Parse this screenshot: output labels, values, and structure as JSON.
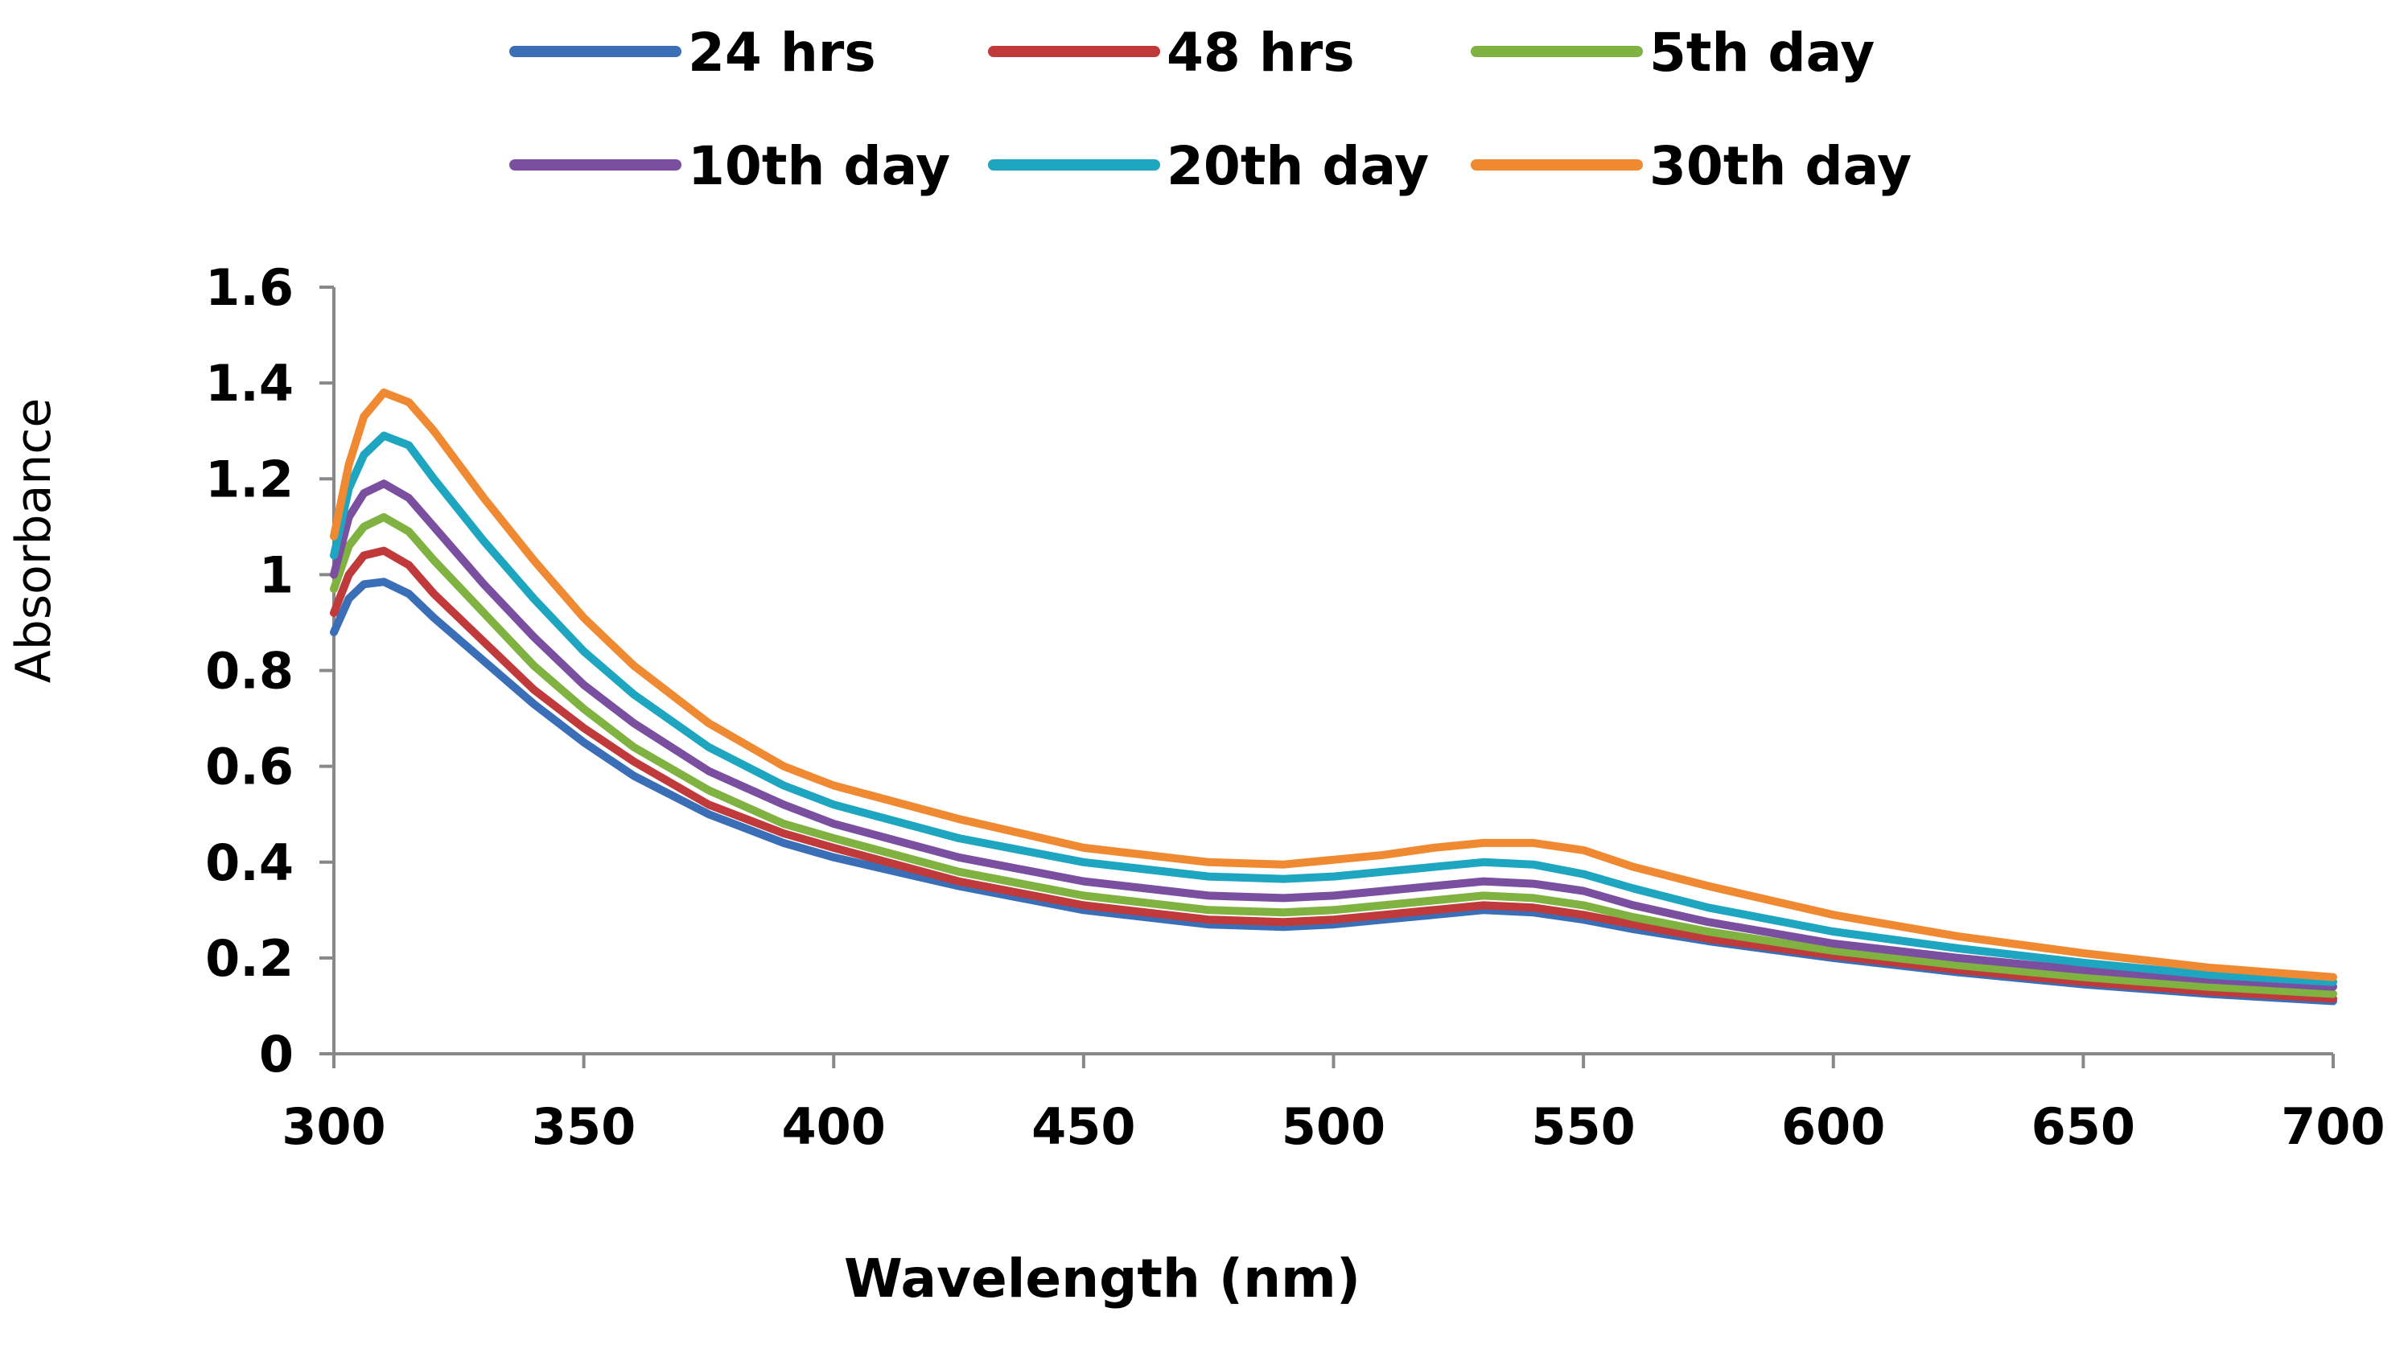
{
  "chart_data": {
    "type": "line",
    "title": "",
    "xlabel": "Wavelength (nm)",
    "ylabel": "Absorbance",
    "xlim": [
      300,
      700
    ],
    "ylim": [
      0,
      1.6
    ],
    "xticks": [
      300,
      350,
      400,
      450,
      500,
      550,
      600,
      650,
      700
    ],
    "yticks": [
      0,
      0.2,
      0.4,
      0.6,
      0.8,
      1,
      1.2,
      1.4,
      1.6
    ],
    "ytick_labels": [
      "0",
      "0.2",
      "0.4",
      "0.6",
      "0.8",
      "1",
      "1.2",
      "1.4",
      "1.6"
    ],
    "grid": false,
    "legend_position": "top",
    "x": [
      300,
      303,
      306,
      310,
      315,
      320,
      330,
      340,
      350,
      360,
      375,
      390,
      400,
      425,
      450,
      475,
      490,
      500,
      510,
      520,
      530,
      540,
      550,
      560,
      575,
      600,
      625,
      650,
      675,
      700
    ],
    "series": [
      {
        "name": "24 hrs",
        "color": "#3a6fb7",
        "values": [
          0.88,
          0.95,
          0.98,
          0.985,
          0.96,
          0.91,
          0.82,
          0.73,
          0.65,
          0.58,
          0.5,
          0.44,
          0.41,
          0.35,
          0.3,
          0.27,
          0.265,
          0.27,
          0.28,
          0.29,
          0.3,
          0.295,
          0.28,
          0.26,
          0.235,
          0.2,
          0.17,
          0.145,
          0.125,
          0.11
        ]
      },
      {
        "name": "48 hrs",
        "color": "#c0393b",
        "values": [
          0.92,
          1.0,
          1.04,
          1.05,
          1.02,
          0.96,
          0.86,
          0.76,
          0.68,
          0.61,
          0.52,
          0.46,
          0.43,
          0.36,
          0.31,
          0.28,
          0.275,
          0.28,
          0.29,
          0.3,
          0.31,
          0.305,
          0.29,
          0.27,
          0.24,
          0.205,
          0.175,
          0.15,
          0.13,
          0.115
        ]
      },
      {
        "name": "5th day",
        "color": "#7fb241",
        "values": [
          0.97,
          1.06,
          1.1,
          1.12,
          1.09,
          1.03,
          0.92,
          0.81,
          0.72,
          0.64,
          0.55,
          0.48,
          0.45,
          0.38,
          0.33,
          0.3,
          0.295,
          0.3,
          0.31,
          0.32,
          0.33,
          0.325,
          0.31,
          0.285,
          0.255,
          0.215,
          0.185,
          0.16,
          0.14,
          0.125
        ]
      },
      {
        "name": "10th day",
        "color": "#7b4fa0",
        "values": [
          1.0,
          1.12,
          1.17,
          1.19,
          1.16,
          1.1,
          0.98,
          0.87,
          0.77,
          0.69,
          0.59,
          0.52,
          0.48,
          0.41,
          0.36,
          0.33,
          0.325,
          0.33,
          0.34,
          0.35,
          0.36,
          0.355,
          0.34,
          0.31,
          0.275,
          0.23,
          0.2,
          0.175,
          0.155,
          0.14
        ]
      },
      {
        "name": "20th day",
        "color": "#1ea5c0",
        "values": [
          1.04,
          1.18,
          1.25,
          1.29,
          1.27,
          1.2,
          1.07,
          0.95,
          0.84,
          0.75,
          0.64,
          0.56,
          0.52,
          0.45,
          0.4,
          0.37,
          0.365,
          0.37,
          0.38,
          0.39,
          0.4,
          0.395,
          0.375,
          0.345,
          0.305,
          0.255,
          0.22,
          0.19,
          0.165,
          0.15
        ]
      },
      {
        "name": "30th day",
        "color": "#ef8a33",
        "values": [
          1.08,
          1.23,
          1.33,
          1.38,
          1.36,
          1.3,
          1.16,
          1.03,
          0.91,
          0.81,
          0.69,
          0.6,
          0.56,
          0.49,
          0.43,
          0.4,
          0.395,
          0.405,
          0.415,
          0.43,
          0.44,
          0.44,
          0.425,
          0.39,
          0.35,
          0.29,
          0.245,
          0.21,
          0.18,
          0.16
        ]
      }
    ]
  }
}
